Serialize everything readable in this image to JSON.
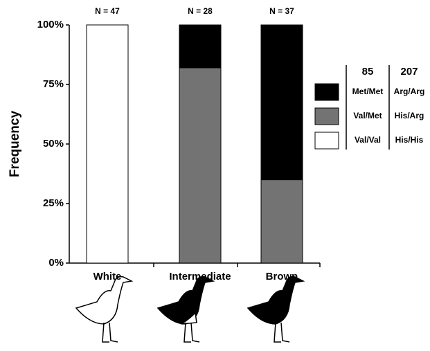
{
  "chart_data": {
    "type": "bar",
    "stacked": true,
    "y_label": "Frequency",
    "categories": [
      "White",
      "Intermediate",
      "Brown"
    ],
    "annotations": [
      "N = 47",
      "N = 28",
      "N = 37"
    ],
    "legend_headers": [
      "85",
      "207"
    ],
    "series": [
      {
        "name": "Met/Met",
        "alt_name": "Arg/Arg",
        "color": "#000000",
        "values": [
          0,
          18,
          65
        ]
      },
      {
        "name": "Val/Met",
        "alt_name": "His/Arg",
        "color": "#737373",
        "values": [
          0,
          82,
          35
        ]
      },
      {
        "name": "Val/Val",
        "alt_name": "His/His",
        "color": "#ffffff",
        "values": [
          100,
          0,
          0
        ]
      }
    ],
    "ylim": [
      0,
      100
    ],
    "yticks": [
      {
        "value": 0,
        "label": "0%"
      },
      {
        "value": 25,
        "label": "25%"
      },
      {
        "value": 50,
        "label": "50%"
      },
      {
        "value": 75,
        "label": "75%"
      },
      {
        "value": 100,
        "label": "100%"
      }
    ]
  }
}
